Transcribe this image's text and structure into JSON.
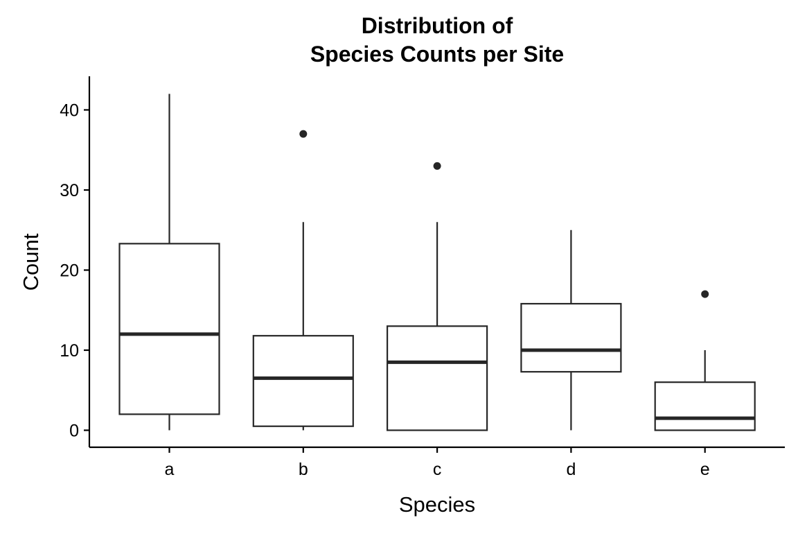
{
  "chart_data": {
    "type": "boxplot",
    "title_lines": [
      "Distribution of",
      "Species Counts per Site"
    ],
    "xlabel": "Species",
    "ylabel": "Count",
    "ylim": [
      -2,
      44
    ],
    "yticks": [
      0,
      10,
      20,
      30,
      40
    ],
    "grid": false,
    "colors": {
      "stroke": "#262626",
      "fill": "#ffffff",
      "axis": "#000000"
    },
    "categories": [
      "a",
      "b",
      "c",
      "d",
      "e"
    ],
    "boxes": [
      {
        "category": "a",
        "whisker_low": 0,
        "q1": 2,
        "median": 12,
        "q3": 23.3,
        "whisker_high": 42,
        "outliers": []
      },
      {
        "category": "b",
        "whisker_low": 0,
        "q1": 0.5,
        "median": 6.5,
        "q3": 11.8,
        "whisker_high": 26,
        "outliers": [
          37
        ]
      },
      {
        "category": "c",
        "whisker_low": 0,
        "q1": 0,
        "median": 8.5,
        "q3": 13,
        "whisker_high": 26,
        "outliers": [
          33
        ]
      },
      {
        "category": "d",
        "whisker_low": 0,
        "q1": 7.3,
        "median": 10,
        "q3": 15.8,
        "whisker_high": 25,
        "outliers": []
      },
      {
        "category": "e",
        "whisker_low": 0,
        "q1": 0,
        "median": 1.5,
        "q3": 6,
        "whisker_high": 10,
        "outliers": [
          17
        ]
      }
    ]
  }
}
